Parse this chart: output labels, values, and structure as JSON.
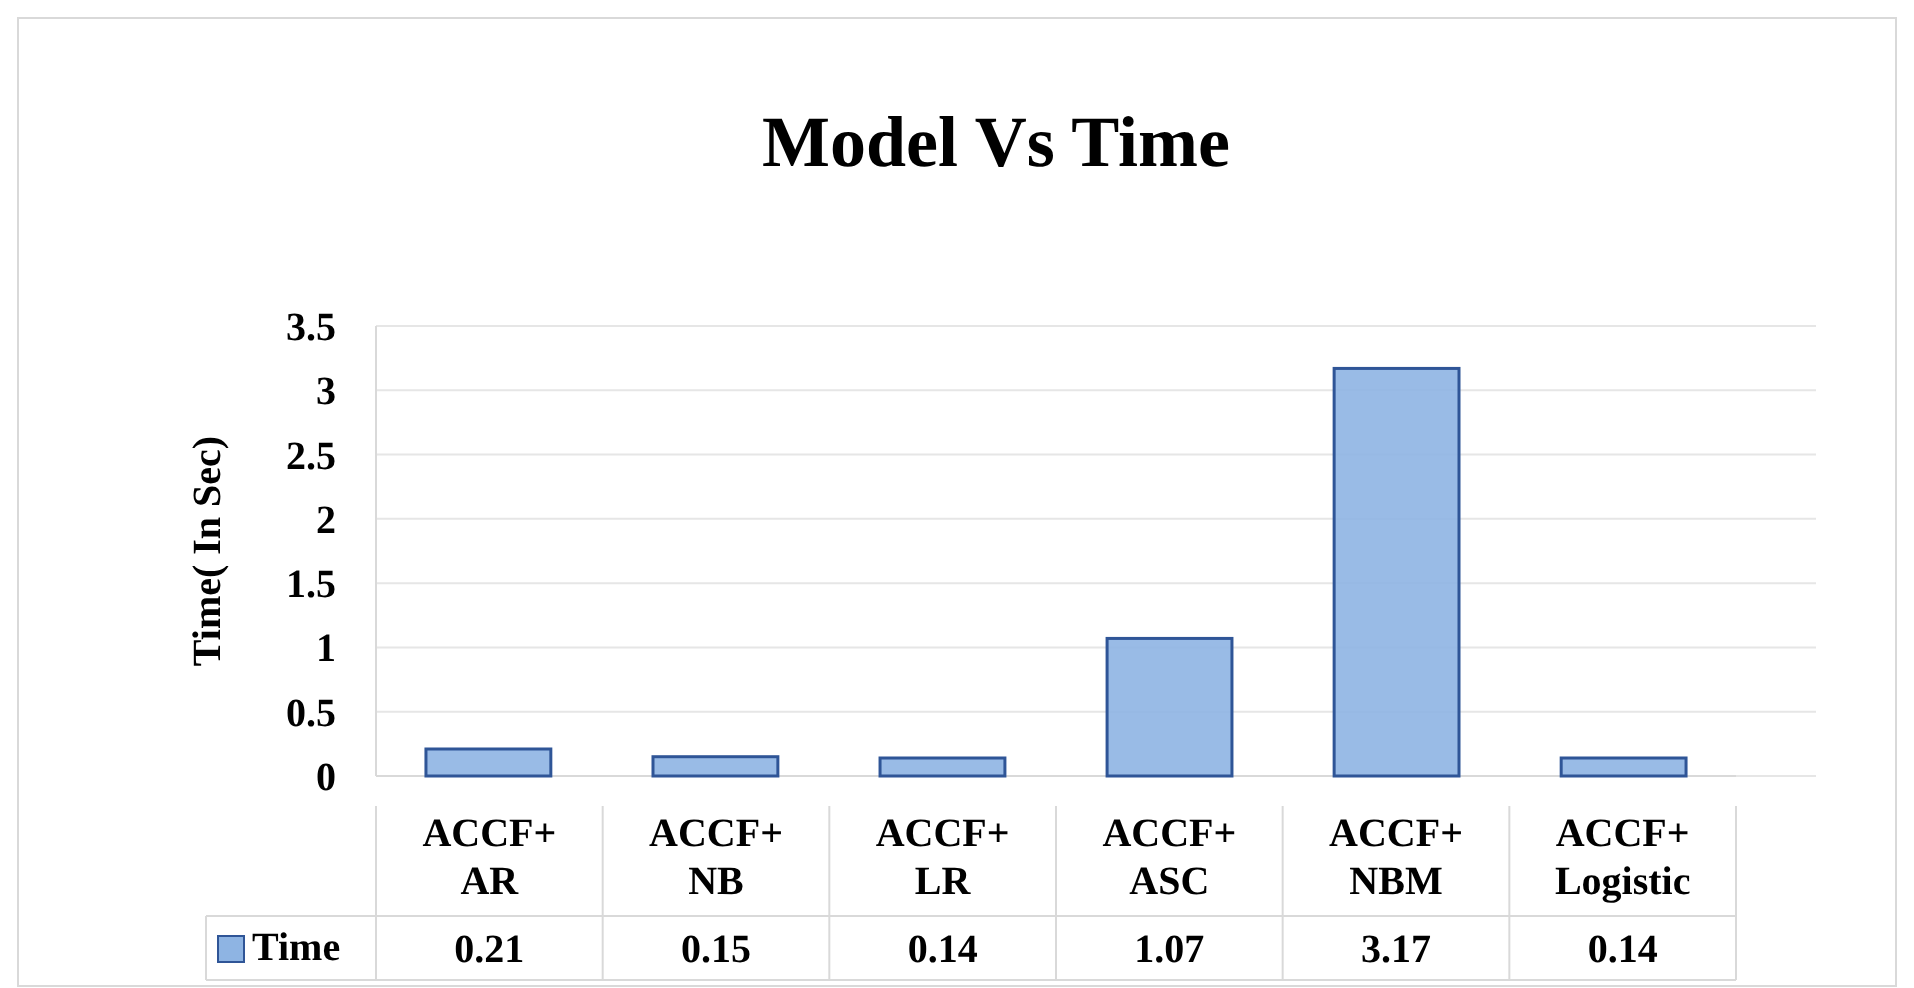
{
  "chart_data": {
    "type": "bar",
    "title": "Model Vs Time",
    "ylabel": "Time( In Sec)",
    "categories": [
      "ACCF+ AR",
      "ACCF+ NB",
      "ACCF+ LR",
      "ACCF+ ASC",
      "ACCF+ NBM",
      "ACCF+ Logistic"
    ],
    "series": [
      {
        "name": "Time",
        "color": "#8eb4e3",
        "values": [
          0.21,
          0.15,
          0.14,
          1.07,
          3.17,
          0.14
        ]
      }
    ],
    "ylim": [
      0,
      3.5
    ],
    "yticks": [
      0,
      0.5,
      1,
      1.5,
      2,
      2.5,
      3,
      3.5
    ],
    "grid": "y",
    "data_labels": true,
    "legend": "bottom"
  }
}
